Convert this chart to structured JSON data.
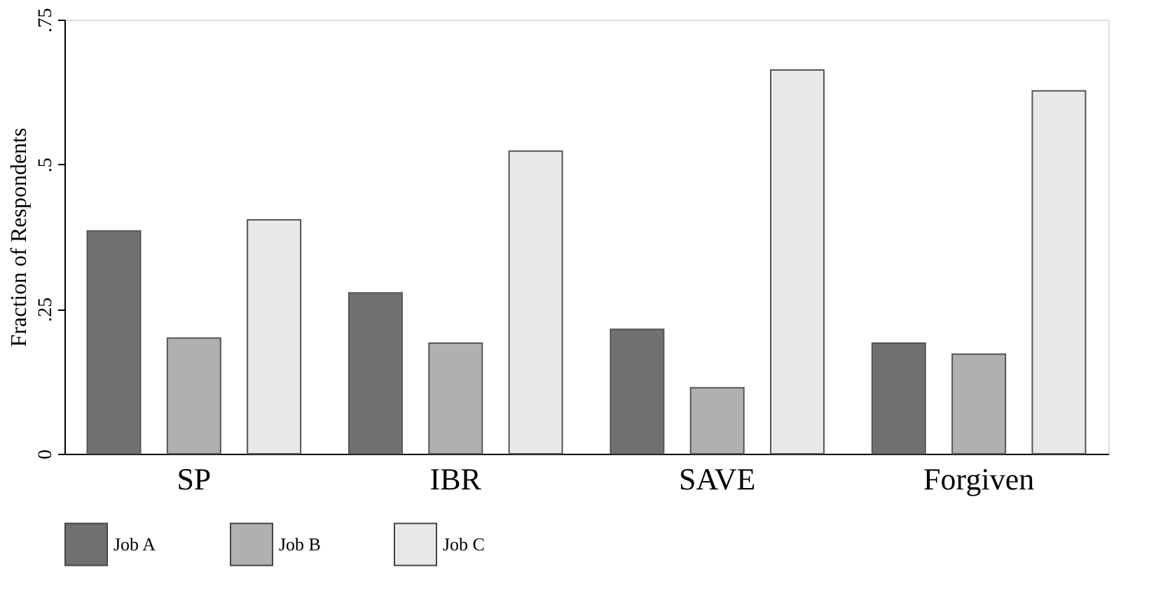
{
  "chart_data": {
    "type": "bar",
    "ylabel": "Fraction of Respondents",
    "categories": [
      "SP",
      "IBR",
      "SAVE",
      "Forgiven"
    ],
    "series": [
      {
        "name": "Job A",
        "color": "#707070",
        "values": [
          0.385,
          0.278,
          0.215,
          0.191
        ]
      },
      {
        "name": "Job B",
        "color": "#b0b0b0",
        "values": [
          0.2,
          0.191,
          0.114,
          0.172
        ]
      },
      {
        "name": "Job C",
        "color": "#e8e8e8",
        "values": [
          0.404,
          0.523,
          0.663,
          0.627
        ]
      }
    ],
    "ylim": [
      0,
      0.75
    ],
    "yticks": [
      0,
      {
        "value": 0.25,
        "label": ".25"
      },
      {
        "value": 0.5,
        "label": ".5"
      },
      {
        "value": 0.75,
        "label": ".75"
      }
    ],
    "grid": false,
    "legend": "bottom"
  }
}
